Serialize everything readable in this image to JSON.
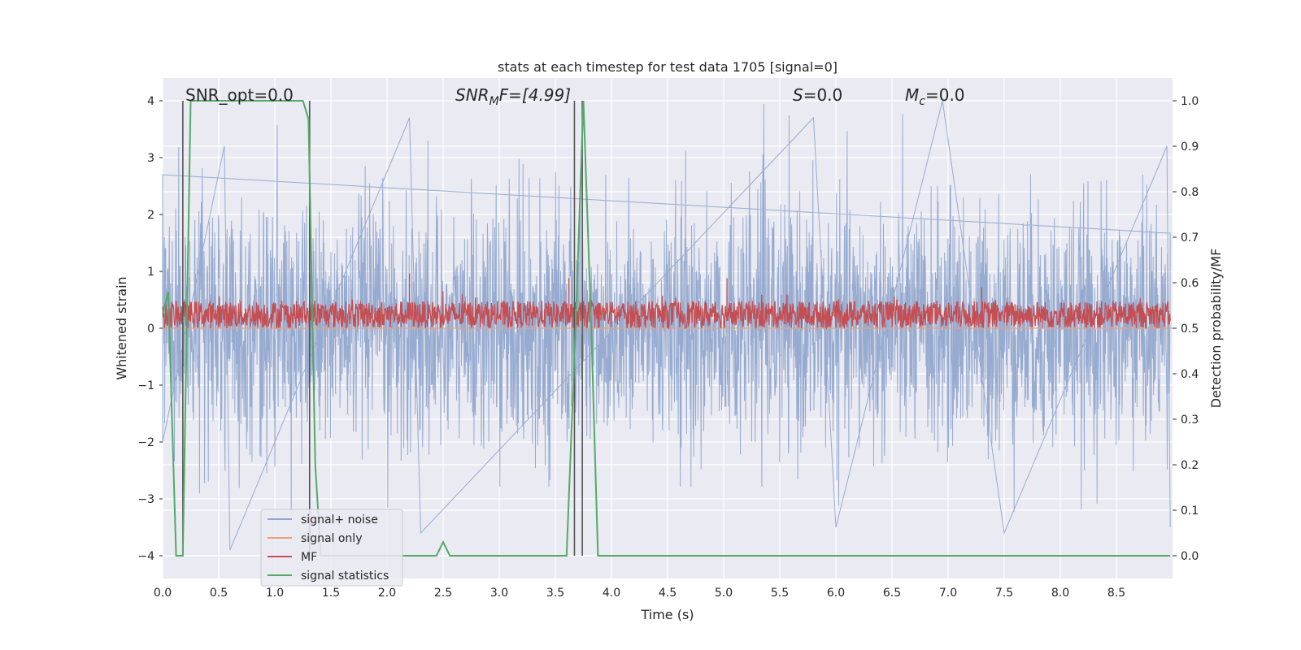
{
  "chart_data": {
    "type": "line",
    "title": "stats at each timestep for test data 1705 [signal=0]",
    "xlabel": "Time (s)",
    "ylabel_left": "Whitened strain",
    "ylabel_right": "Detection probability/MF",
    "xlim": [
      0.0,
      9.0
    ],
    "ylim_left": [
      -4.4,
      4.4
    ],
    "ylim_right": [
      -0.05,
      1.05
    ],
    "xticks": [
      0.0,
      0.5,
      1.0,
      1.5,
      2.0,
      2.5,
      3.0,
      3.5,
      4.0,
      4.5,
      5.0,
      5.5,
      6.0,
      6.5,
      7.0,
      7.5,
      8.0,
      8.5
    ],
    "xtick_labels": [
      "0.0",
      "0.5",
      "1.0",
      "1.5",
      "2.0",
      "2.5",
      "3.0",
      "3.5",
      "4.0",
      "4.5",
      "5.0",
      "5.5",
      "6.0",
      "6.5",
      "7.0",
      "7.5",
      "8.0",
      "8.5"
    ],
    "yticks_left": [
      -4,
      -3,
      -2,
      -1,
      0,
      1,
      2,
      3,
      4
    ],
    "ytick_labels_left": [
      "−4",
      "−3",
      "−2",
      "−1",
      "0",
      "1",
      "2",
      "3",
      "4"
    ],
    "yticks_right": [
      0.0,
      0.1,
      0.2,
      0.3,
      0.4,
      0.5,
      0.6,
      0.7,
      0.8,
      0.9,
      1.0
    ],
    "ytick_labels_right": [
      "0.0",
      "0.1",
      "0.2",
      "0.3",
      "0.4",
      "0.5",
      "0.6",
      "0.7",
      "0.8",
      "0.9",
      "1.0"
    ],
    "grid": true,
    "legend_placement": "lower-left",
    "annotations": {
      "snr_opt": "SNR_opt=0.0",
      "snr_mf_main": "SNR",
      "snr_mf_sub": "M",
      "snr_mf_rest": "F=[4.99]",
      "s_main": "S",
      "s_rest": "=0.0",
      "mc_main": "M",
      "mc_sub": "c",
      "mc_rest": "=0.0"
    },
    "vertical_markers": [
      0.18,
      1.31,
      3.67,
      3.74
    ],
    "series": [
      {
        "name": "signal+ noise",
        "color": "#8ea4cc",
        "axis": "left",
        "description_points": [
          [
            0.0,
            2.7
          ],
          [
            0.0,
            -2.0
          ],
          [
            0.55,
            3.2
          ],
          [
            0.6,
            -3.9
          ],
          [
            2.2,
            3.7
          ],
          [
            2.3,
            -3.6
          ],
          [
            5.8,
            3.7
          ],
          [
            6.0,
            -3.5
          ],
          [
            6.95,
            4.0
          ],
          [
            7.5,
            -3.6
          ],
          [
            8.95,
            3.2
          ],
          [
            8.98,
            -3.5
          ]
        ]
      },
      {
        "name": "signal only",
        "color": "#e8a07e",
        "axis": "left",
        "points": [
          [
            0.0,
            0.0
          ],
          [
            9.0,
            0.0
          ]
        ]
      },
      {
        "name": "MF",
        "color": "#c44e52",
        "axis": "right",
        "baseline_range": [
          0.5,
          0.56
        ],
        "peaks": [
          [
            2.2,
            0.62
          ],
          [
            3.62,
            0.61
          ],
          [
            5.03,
            0.61
          ],
          [
            7.3,
            0.59
          ]
        ]
      },
      {
        "name": "signal statistics",
        "color": "#55a868",
        "axis": "right",
        "points": [
          [
            0.0,
            0.53
          ],
          [
            0.05,
            0.58
          ],
          [
            0.12,
            0.0
          ],
          [
            0.18,
            0.0
          ],
          [
            0.25,
            1.0
          ],
          [
            1.25,
            1.0
          ],
          [
            1.3,
            0.96
          ],
          [
            1.36,
            0.2
          ],
          [
            1.41,
            0.0
          ],
          [
            2.44,
            0.0
          ],
          [
            2.5,
            0.03
          ],
          [
            2.56,
            0.0
          ],
          [
            3.6,
            0.0
          ],
          [
            3.68,
            0.5
          ],
          [
            3.75,
            1.0
          ],
          [
            3.82,
            0.5
          ],
          [
            3.88,
            0.0
          ],
          [
            8.98,
            0.0
          ]
        ]
      }
    ]
  }
}
